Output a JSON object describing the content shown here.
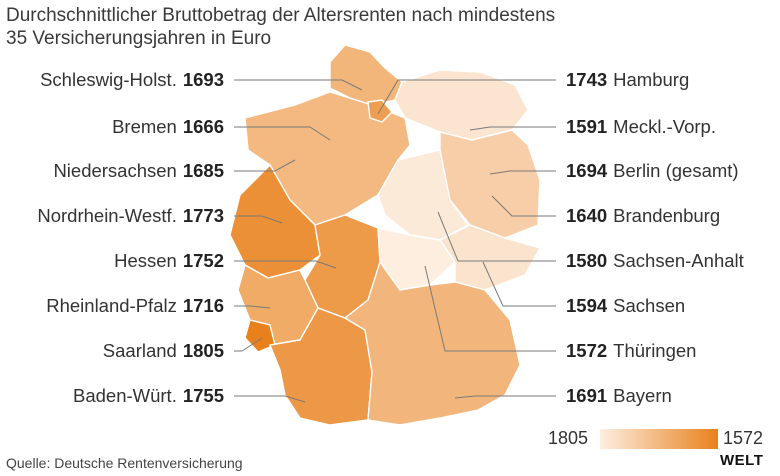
{
  "title": {
    "line1": "Durchschnittlicher Bruttobetrag der Altersrenten nach mindestens",
    "line2": "35 Versicherungsjahren in Euro"
  },
  "chart_data": {
    "type": "choropleth-map",
    "unit": "Euro",
    "color_scale": {
      "low_color": "#fdeee0",
      "high_color": "#e8811c",
      "label_left": "1805",
      "label_right": "1572"
    },
    "regions": [
      {
        "name": "Schleswig-Holst.",
        "value": 1693
      },
      {
        "name": "Bremen",
        "value": 1666
      },
      {
        "name": "Niedersachsen",
        "value": 1685
      },
      {
        "name": "Nordrhein-Westf.",
        "value": 1773
      },
      {
        "name": "Hessen",
        "value": 1752
      },
      {
        "name": "Rheinland-Pfalz",
        "value": 1716
      },
      {
        "name": "Saarland",
        "value": 1805
      },
      {
        "name": "Baden-Würt.",
        "value": 1755
      },
      {
        "name": "Hamburg",
        "value": 1743
      },
      {
        "name": "Meckl.-Vorp.",
        "value": 1591
      },
      {
        "name": "Berlin (gesamt)",
        "value": 1694
      },
      {
        "name": "Brandenburg",
        "value": 1640
      },
      {
        "name": "Sachsen-Anhalt",
        "value": 1580
      },
      {
        "name": "Sachsen",
        "value": 1594
      },
      {
        "name": "Thüringen",
        "value": 1572
      },
      {
        "name": "Bayern",
        "value": 1691
      }
    ]
  },
  "legend": {
    "left": "1805",
    "right": "1572"
  },
  "source": "Quelle: Deutsche Rentenversicherung",
  "logo": "WELT"
}
